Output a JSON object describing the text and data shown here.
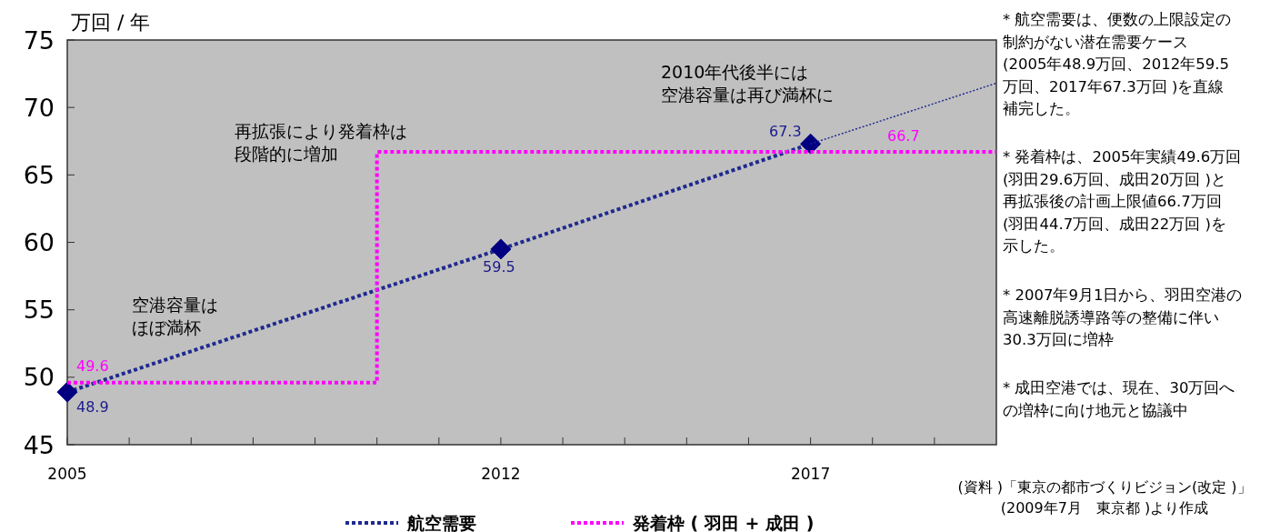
{
  "chart_data": {
    "type": "line",
    "ylabel": "万回 / 年",
    "xlim": [
      2005,
      2020
    ],
    "xticks": [
      2005,
      {
        "value": 2006,
        "label": null
      },
      {
        "value": 2007,
        "label": null
      },
      {
        "value": 2008,
        "label": null
      },
      {
        "value": 2009,
        "label": null
      },
      {
        "value": 2010,
        "label": null
      },
      {
        "value": 2011,
        "label": null
      },
      2012,
      {
        "value": 2013,
        "label": null
      },
      {
        "value": 2014,
        "label": null
      },
      {
        "value": 2015,
        "label": null
      },
      {
        "value": 2016,
        "label": null
      },
      2017,
      {
        "value": 2018,
        "label": null
      },
      {
        "value": 2019,
        "label": null
      }
    ],
    "ylim": [
      45,
      75
    ],
    "yticks": [
      45,
      50,
      55,
      60,
      65,
      70,
      75
    ],
    "grid": false,
    "legend": "bottom",
    "line_style": "dotted",
    "series": [
      {
        "name": "航空需要",
        "type": "line",
        "color": "#1f2a8f",
        "marker": "diamond",
        "x": [
          2005,
          2012,
          2017
        ],
        "values": [
          48.9,
          59.5,
          67.3
        ],
        "value_labels": [
          "48.9",
          "59.5",
          "67.3"
        ]
      },
      {
        "type": "line",
        "color": "#1f2a8f",
        "marker": "none",
        "x": [
          2017,
          2020
        ],
        "values": [
          67.3,
          71.8
        ]
      },
      {
        "name": "発着枠 ( 羽田 + 成田 )",
        "type": "step",
        "color": "#ff00ff",
        "marker": "none",
        "x": [
          2005,
          2010,
          2020
        ],
        "values": [
          49.6,
          66.7,
          66.7
        ]
      }
    ],
    "annotations": [
      "空港容量はほぼ満杯",
      "再拡張により発着枠は段階的に増加",
      "2010年代後半には空港容量は再び満杯に",
      {
        "text": "49.6",
        "x": 2005,
        "y": 49.6
      },
      {
        "text": "66.7",
        "x": 2018.5,
        "y": 66.7
      },
      "* 航空需要は、便数の上限設定の制約がない潜在需要ケース(2005年48.9万回、2012年59.5万回、2017年67.3万回 )を直線補完した。",
      "* 発着枠は、2005年実績49.6万回(羽田29.6万回、成田20万回 )と再拡張後の計画上限値66.7万回(羽田44.7万回、成田22万回 )を示した。",
      "* 2007年9月1日から、羽田空港の高速離脱誘導路等の整備に伴い30.3万回に増枠",
      "* 成田空港では、現在、30万回への増枠に向け地元と協議中",
      "(資料 )「東京の都市づくりビジョン(改定 )」\n(2009年7月　東京都 )より作成"
    ]
  }
}
